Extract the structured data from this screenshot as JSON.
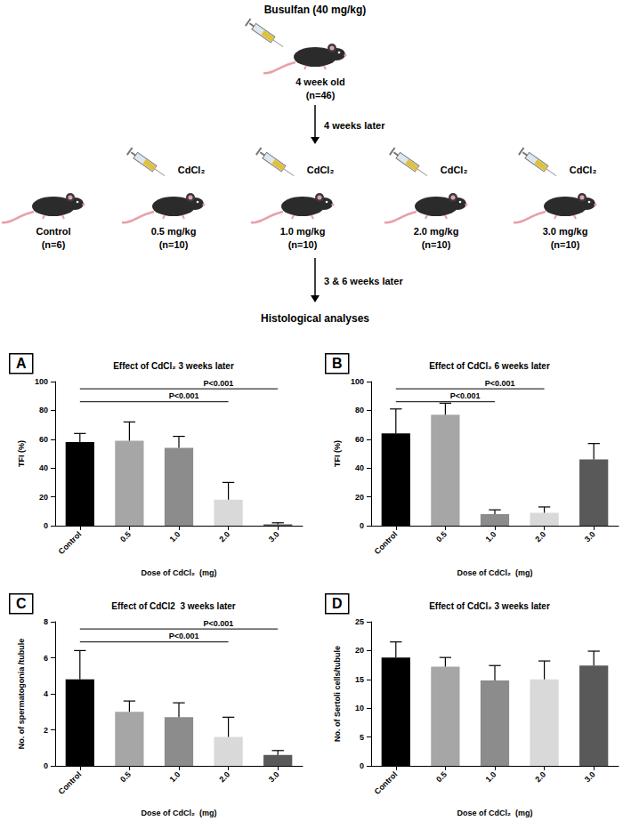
{
  "diagram": {
    "treatment": "Busulfan (40 mg/kg)",
    "start": {
      "label": "4 week old",
      "n": "(n=46)"
    },
    "step1": "4 weeks later",
    "groups": [
      {
        "label": "Control",
        "n": "(n=6)"
      },
      {
        "drug": "CdCl₂",
        "label": "0.5 mg/kg",
        "n": "(n=10)"
      },
      {
        "drug": "CdCl₂",
        "label": "1.0 mg/kg",
        "n": "(n=10)"
      },
      {
        "drug": "CdCl₂",
        "label": "2.0 mg/kg",
        "n": "(n=10)"
      },
      {
        "drug": "CdCl₂",
        "label": "3.0 mg/kg",
        "n": "(n=10)"
      }
    ],
    "step2": "3 & 6 weeks later",
    "end": "Histological analyses"
  },
  "chart_data": [
    {
      "type": "bar",
      "panel": "A",
      "title": "Effect of CdCl₂ 3 weeks later",
      "x_label": "Dose of CdCl₂  (mg)",
      "y_label": "TFI (%)",
      "categories": [
        "Control",
        "0.5",
        "1.0",
        "2.0",
        "3.0"
      ],
      "values": [
        58,
        59,
        54,
        18,
        1
      ],
      "errors": [
        6,
        13,
        8,
        12,
        1
      ],
      "colors": [
        "#000000",
        "#a6a6a6",
        "#8c8c8c",
        "#d9d9d9",
        "#595959"
      ],
      "ylim": [
        0,
        100
      ],
      "yticks": [
        0,
        20,
        40,
        60,
        80,
        100
      ],
      "grid": false,
      "annotations": [
        {
          "text": "P<0.001",
          "from": "Control",
          "to": "2.0"
        },
        {
          "text": "P<0.001",
          "from": "Control",
          "to": "3.0"
        }
      ]
    },
    {
      "type": "bar",
      "panel": "B",
      "title": "Effect of CdCl₂ 6 weeks later",
      "x_label": "Dose of CdCl₂  (mg)",
      "y_label": "TFI (%)",
      "categories": [
        "Control",
        "0.5",
        "1.0",
        "2.0",
        "3.0"
      ],
      "values": [
        64,
        77,
        8,
        9,
        46
      ],
      "errors": [
        17,
        8,
        3,
        4,
        11
      ],
      "colors": [
        "#000000",
        "#a6a6a6",
        "#8c8c8c",
        "#d9d9d9",
        "#595959"
      ],
      "ylim": [
        0,
        100
      ],
      "yticks": [
        0,
        20,
        40,
        60,
        80,
        100
      ],
      "grid": false,
      "annotations": [
        {
          "text": "P<0.001",
          "from": "Control",
          "to": "1.0"
        },
        {
          "text": "P<0.001",
          "from": "Control",
          "to": "2.0"
        }
      ]
    },
    {
      "type": "bar",
      "panel": "C",
      "title": "Effect of CdCl2  3 weeks later",
      "x_label": "Dose of CdCl₂  (mg)",
      "y_label": "No. of spermatogonia /tubule",
      "categories": [
        "Control",
        "0.5",
        "1.0",
        "2.0",
        "3.0"
      ],
      "values": [
        4.8,
        3.0,
        2.7,
        1.6,
        0.6
      ],
      "errors": [
        1.6,
        0.6,
        0.8,
        1.1,
        0.25
      ],
      "colors": [
        "#000000",
        "#a6a6a6",
        "#8c8c8c",
        "#d9d9d9",
        "#595959"
      ],
      "ylim": [
        0,
        8
      ],
      "yticks": [
        0,
        2,
        4,
        6,
        8
      ],
      "grid": false,
      "annotations": [
        {
          "text": "P<0.001",
          "from": "Control",
          "to": "2.0"
        },
        {
          "text": "P<0.001",
          "from": "Control",
          "to": "3.0"
        }
      ]
    },
    {
      "type": "bar",
      "panel": "D",
      "title": "Effect of CdCl₂ 3 weeks later",
      "x_label": "Dose of CdCl₂  (mg)",
      "y_label": "No. of Sertoli cells/tubule",
      "categories": [
        "Control",
        "0.5",
        "1.0",
        "2.0",
        "3.0"
      ],
      "values": [
        18.8,
        17.2,
        14.8,
        15.0,
        17.4
      ],
      "errors": [
        2.7,
        1.6,
        2.6,
        3.2,
        2.5
      ],
      "colors": [
        "#000000",
        "#a6a6a6",
        "#8c8c8c",
        "#d9d9d9",
        "#595959"
      ],
      "ylim": [
        0,
        25
      ],
      "yticks": [
        0,
        5,
        10,
        15,
        20,
        25
      ],
      "grid": false
    }
  ]
}
